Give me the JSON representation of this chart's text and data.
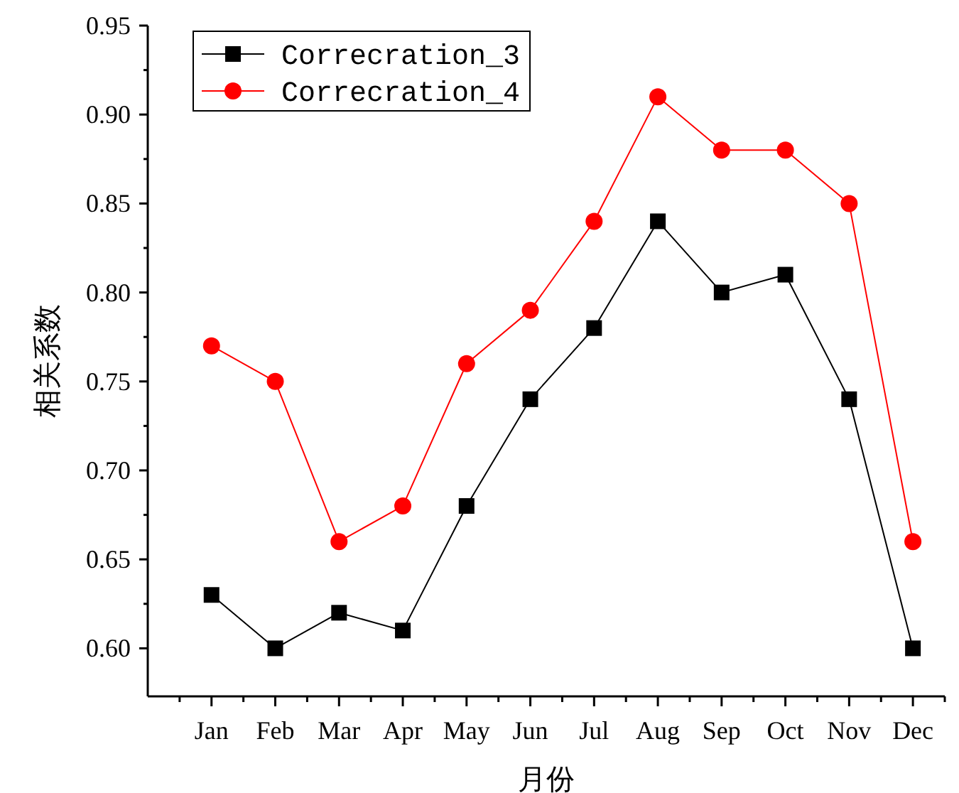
{
  "chart_data": {
    "type": "line",
    "xlabel": "月份",
    "ylabel": "相关系数",
    "categories": [
      "Jan",
      "Feb",
      "Mar",
      "Apr",
      "May",
      "Jun",
      "Jul",
      "Aug",
      "Sep",
      "Oct",
      "Nov",
      "Dec"
    ],
    "series": [
      {
        "name": "Correcration_3",
        "color": "#000000",
        "marker": "square",
        "values": [
          0.63,
          0.6,
          0.62,
          0.61,
          0.68,
          0.74,
          0.78,
          0.84,
          0.8,
          0.81,
          0.74,
          0.6
        ]
      },
      {
        "name": "Correcration_4",
        "color": "#ff0000",
        "marker": "circle",
        "values": [
          0.77,
          0.75,
          0.66,
          0.68,
          0.76,
          0.79,
          0.84,
          0.91,
          0.88,
          0.88,
          0.85,
          0.66
        ]
      }
    ],
    "ylim": [
      0.573,
      0.95
    ],
    "yticks": [
      {
        "value": 0.6,
        "label": "0.60"
      },
      {
        "value": 0.65,
        "label": "0.65"
      },
      {
        "value": 0.7,
        "label": "0.70"
      },
      {
        "value": 0.75,
        "label": "0.75"
      },
      {
        "value": 0.8,
        "label": "0.80"
      },
      {
        "value": 0.85,
        "label": "0.85"
      },
      {
        "value": 0.9,
        "label": "0.90"
      },
      {
        "value": 0.95,
        "label": "0.95"
      }
    ],
    "legend": "top left",
    "grid": false,
    "line_style": "solid"
  }
}
